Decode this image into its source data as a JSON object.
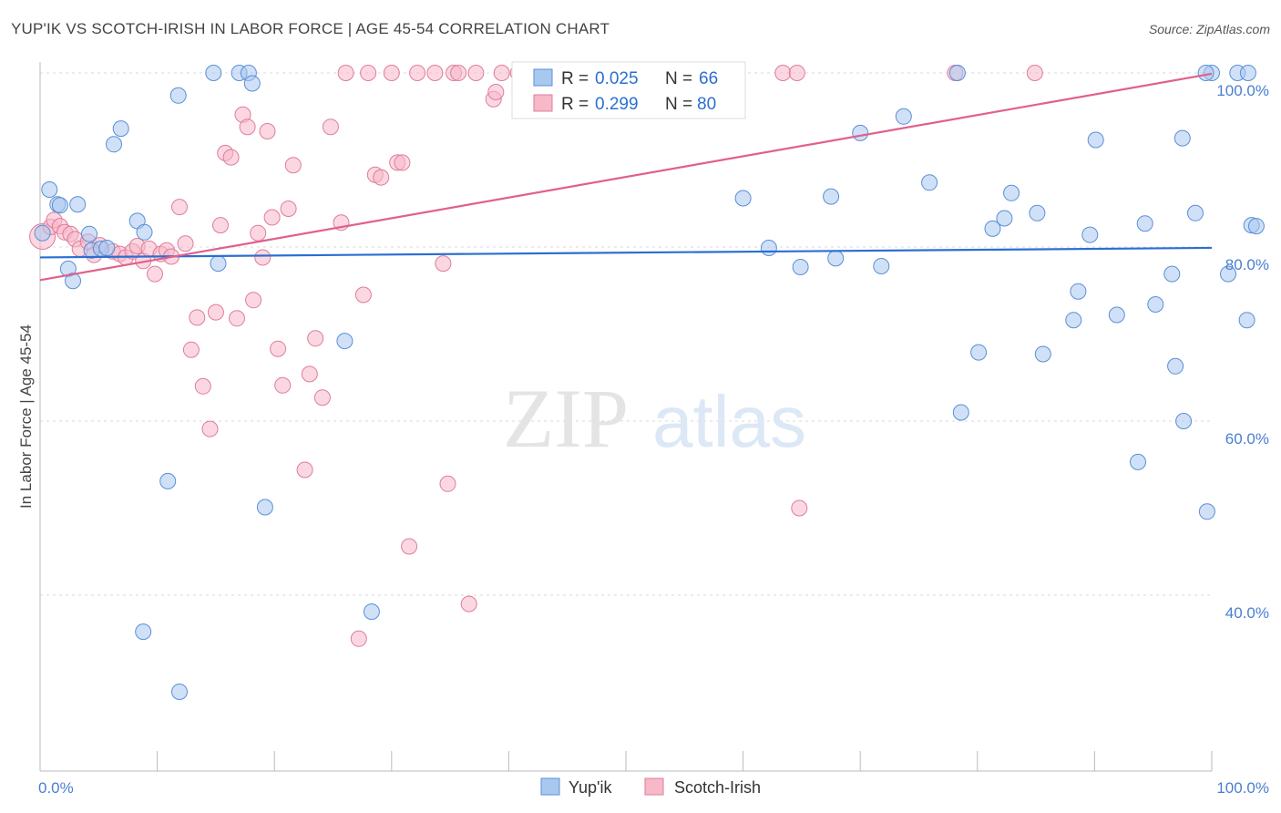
{
  "title": "YUP'IK VS SCOTCH-IRISH IN LABOR FORCE | AGE 45-54 CORRELATION CHART",
  "source": "Source: ZipAtlas.com",
  "watermark": {
    "zip": "ZIP",
    "atlas": "atlas"
  },
  "colors": {
    "blue_fill": "#a9c8f0",
    "blue_stroke": "#5a8fd6",
    "blue_line": "#2b6fd1",
    "pink_fill": "#f7b8c8",
    "pink_stroke": "#e07c9c",
    "pink_line": "#e0608c",
    "tick": "#4a7fd1",
    "grid": "#d8d8d8"
  },
  "legend": {
    "rows": [
      {
        "r_label": "R =",
        "r_value": "0.025",
        "n_label": "N =",
        "n_value": "66"
      },
      {
        "r_label": "R =",
        "r_value": "0.299",
        "n_label": "N =",
        "n_value": "80"
      }
    ]
  },
  "chart_data": {
    "type": "scatter",
    "xlabel": "",
    "ylabel": "In Labor Force | Age 45-54",
    "xlim": [
      0,
      100
    ],
    "ylim": [
      22,
      102
    ],
    "x_tick_labels": [
      {
        "value": 0,
        "label": "0.0%"
      },
      {
        "value": 100,
        "label": "100.0%"
      }
    ],
    "y_tick_labels": [
      {
        "value": 100,
        "label": "100.0%"
      },
      {
        "value": 80,
        "label": "80.0%"
      },
      {
        "value": 60,
        "label": "60.0%"
      },
      {
        "value": 40,
        "label": "40.0%"
      }
    ],
    "grid": true,
    "legend_position": "bottom-center",
    "series": [
      {
        "name": "Yup'ik",
        "trend": [
          [
            0,
            78.8
          ],
          [
            100,
            79.9
          ]
        ],
        "points": [
          [
            0.2,
            81.6
          ],
          [
            0.8,
            86.6
          ],
          [
            1.5,
            84.9
          ],
          [
            3.2,
            84.9
          ],
          [
            1.7,
            84.8
          ],
          [
            2.4,
            77.5
          ],
          [
            2.8,
            76.1
          ],
          [
            4.2,
            81.5
          ],
          [
            4.4,
            79.6
          ],
          [
            5.2,
            79.8
          ],
          [
            5.7,
            79.9
          ],
          [
            6.3,
            91.8
          ],
          [
            6.9,
            93.6
          ],
          [
            8.3,
            83.0
          ],
          [
            8.8,
            35.8
          ],
          [
            8.9,
            81.7
          ],
          [
            10.9,
            53.1
          ],
          [
            11.8,
            97.4
          ],
          [
            11.9,
            28.9
          ],
          [
            14.8,
            100.0
          ],
          [
            15.2,
            78.1
          ],
          [
            17.0,
            100.0
          ],
          [
            17.8,
            100.0
          ],
          [
            18.1,
            98.8
          ],
          [
            19.2,
            50.1
          ],
          [
            26.0,
            69.2
          ],
          [
            28.3,
            38.1
          ],
          [
            60.0,
            85.6
          ],
          [
            62.2,
            79.9
          ],
          [
            64.9,
            77.7
          ],
          [
            67.5,
            85.8
          ],
          [
            67.9,
            78.7
          ],
          [
            70.0,
            93.1
          ],
          [
            71.8,
            77.8
          ],
          [
            73.7,
            95.0
          ],
          [
            75.9,
            87.4
          ],
          [
            78.3,
            100.0
          ],
          [
            78.6,
            61.0
          ],
          [
            80.1,
            67.9
          ],
          [
            81.3,
            82.1
          ],
          [
            82.3,
            83.3
          ],
          [
            82.9,
            86.2
          ],
          [
            85.1,
            83.9
          ],
          [
            85.6,
            67.7
          ],
          [
            88.2,
            71.6
          ],
          [
            88.6,
            74.9
          ],
          [
            89.6,
            81.4
          ],
          [
            90.1,
            92.3
          ],
          [
            91.9,
            72.2
          ],
          [
            93.7,
            55.3
          ],
          [
            94.3,
            82.7
          ],
          [
            95.2,
            73.4
          ],
          [
            96.6,
            76.9
          ],
          [
            96.9,
            66.3
          ],
          [
            97.5,
            92.5
          ],
          [
            97.6,
            60.0
          ],
          [
            98.6,
            83.9
          ],
          [
            99.6,
            49.6
          ],
          [
            100.0,
            100.0
          ],
          [
            101.4,
            76.9
          ],
          [
            102.2,
            100.0
          ],
          [
            103.0,
            71.6
          ],
          [
            103.1,
            100.0
          ],
          [
            103.4,
            82.5
          ],
          [
            103.8,
            82.4
          ],
          [
            99.5,
            100.0
          ]
        ]
      },
      {
        "name": "Scotch-Irish",
        "trend": [
          [
            0,
            76.2
          ],
          [
            100,
            99.9
          ]
        ],
        "points": [
          [
            0.2,
            81.2
          ],
          [
            0.9,
            82.3
          ],
          [
            1.2,
            83.1
          ],
          [
            1.7,
            82.4
          ],
          [
            2.1,
            81.7
          ],
          [
            2.6,
            81.5
          ],
          [
            3.0,
            80.9
          ],
          [
            3.4,
            79.8
          ],
          [
            4.1,
            80.6
          ],
          [
            4.6,
            79.1
          ],
          [
            5.1,
            80.2
          ],
          [
            6.2,
            79.5
          ],
          [
            6.8,
            79.2
          ],
          [
            7.3,
            78.8
          ],
          [
            7.9,
            79.5
          ],
          [
            8.3,
            80.1
          ],
          [
            8.8,
            78.4
          ],
          [
            9.3,
            79.8
          ],
          [
            9.8,
            76.9
          ],
          [
            10.3,
            79.2
          ],
          [
            10.8,
            79.6
          ],
          [
            11.2,
            78.9
          ],
          [
            11.9,
            84.6
          ],
          [
            12.4,
            80.4
          ],
          [
            12.9,
            68.2
          ],
          [
            13.4,
            71.9
          ],
          [
            13.9,
            64.0
          ],
          [
            14.5,
            59.1
          ],
          [
            15.0,
            72.5
          ],
          [
            15.4,
            82.5
          ],
          [
            15.8,
            90.8
          ],
          [
            16.3,
            90.3
          ],
          [
            16.8,
            71.8
          ],
          [
            17.3,
            95.2
          ],
          [
            17.7,
            93.8
          ],
          [
            18.2,
            73.9
          ],
          [
            18.6,
            81.6
          ],
          [
            19.0,
            78.8
          ],
          [
            19.4,
            93.3
          ],
          [
            19.8,
            83.4
          ],
          [
            20.3,
            68.3
          ],
          [
            20.7,
            64.1
          ],
          [
            21.2,
            84.4
          ],
          [
            21.6,
            89.4
          ],
          [
            22.6,
            54.4
          ],
          [
            23.0,
            65.4
          ],
          [
            23.5,
            69.5
          ],
          [
            24.1,
            62.7
          ],
          [
            24.8,
            93.8
          ],
          [
            25.7,
            82.8
          ],
          [
            26.1,
            100.0
          ],
          [
            27.2,
            35.0
          ],
          [
            27.6,
            74.5
          ],
          [
            28.0,
            100.0
          ],
          [
            28.6,
            88.3
          ],
          [
            29.1,
            88.0
          ],
          [
            30.0,
            100.0
          ],
          [
            30.5,
            89.7
          ],
          [
            30.9,
            89.7
          ],
          [
            31.5,
            45.6
          ],
          [
            32.2,
            100.0
          ],
          [
            33.7,
            100.0
          ],
          [
            34.4,
            78.1
          ],
          [
            34.8,
            52.8
          ],
          [
            35.3,
            100.0
          ],
          [
            35.7,
            100.0
          ],
          [
            36.6,
            39.0
          ],
          [
            37.2,
            100.0
          ],
          [
            38.7,
            97.0
          ],
          [
            38.9,
            97.8
          ],
          [
            39.4,
            100.0
          ],
          [
            40.8,
            100.0
          ],
          [
            43.7,
            100.0
          ],
          [
            44.7,
            100.0
          ],
          [
            51.6,
            100.0
          ],
          [
            63.4,
            100.0
          ],
          [
            64.6,
            100.0
          ],
          [
            64.8,
            50.0
          ],
          [
            78.1,
            100.0
          ],
          [
            84.9,
            100.0
          ]
        ]
      }
    ]
  }
}
